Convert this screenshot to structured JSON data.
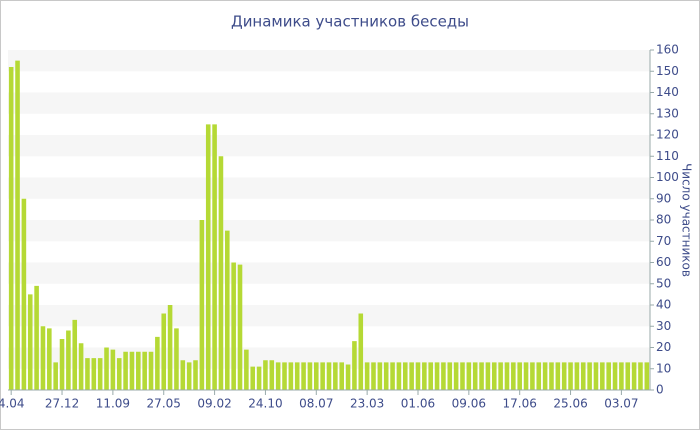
{
  "chart_data": {
    "type": "bar",
    "title": "Динамика участников беседы",
    "y_label": "Число участников",
    "categories": [
      "4.04",
      null,
      null,
      null,
      null,
      null,
      null,
      null,
      "27.12",
      null,
      null,
      null,
      null,
      null,
      null,
      null,
      "11.09",
      null,
      null,
      null,
      null,
      null,
      null,
      null,
      "27.05",
      null,
      null,
      null,
      null,
      null,
      null,
      null,
      "09.02",
      null,
      null,
      null,
      null,
      null,
      null,
      null,
      "24.10",
      null,
      null,
      null,
      null,
      null,
      null,
      null,
      "08.07",
      null,
      null,
      null,
      null,
      null,
      null,
      null,
      "23.03",
      null,
      null,
      null,
      null,
      null,
      null,
      null,
      "01.06",
      null,
      null,
      null,
      null,
      null,
      null,
      null,
      "09.06",
      null,
      null,
      null,
      null,
      null,
      null,
      null,
      "17.06",
      null,
      null,
      null,
      null,
      null,
      null,
      null,
      "25.06",
      null,
      null,
      null,
      null,
      null,
      null,
      null,
      "03.07",
      null,
      null,
      null,
      null
    ],
    "values": [
      152,
      155,
      90,
      45,
      49,
      30,
      29,
      13,
      24,
      28,
      33,
      22,
      15,
      15,
      15,
      20,
      19,
      15,
      18,
      18,
      18,
      18,
      18,
      25,
      36,
      40,
      29,
      14,
      13,
      14,
      80,
      125,
      125,
      110,
      75,
      60,
      59,
      19,
      11,
      11,
      14,
      14,
      13,
      13,
      13,
      13,
      13,
      13,
      13,
      13,
      13,
      13,
      13,
      12,
      23,
      36,
      13,
      13,
      13,
      13,
      13,
      13,
      13,
      13,
      13,
      13,
      13,
      13,
      13,
      13,
      13,
      13,
      13,
      13,
      13,
      13,
      13,
      13,
      13,
      13,
      13,
      13,
      13,
      13,
      13,
      13,
      13,
      13,
      13,
      13,
      13,
      13,
      13,
      13,
      13,
      13,
      13,
      13,
      13,
      13,
      13
    ],
    "color": "#b5d935",
    "ylim": [
      0,
      160
    ],
    "yticks": [
      0,
      10,
      20,
      30,
      40,
      50,
      60,
      70,
      80,
      90,
      100,
      110,
      120,
      130,
      140,
      150,
      160
    ],
    "grid": true
  }
}
